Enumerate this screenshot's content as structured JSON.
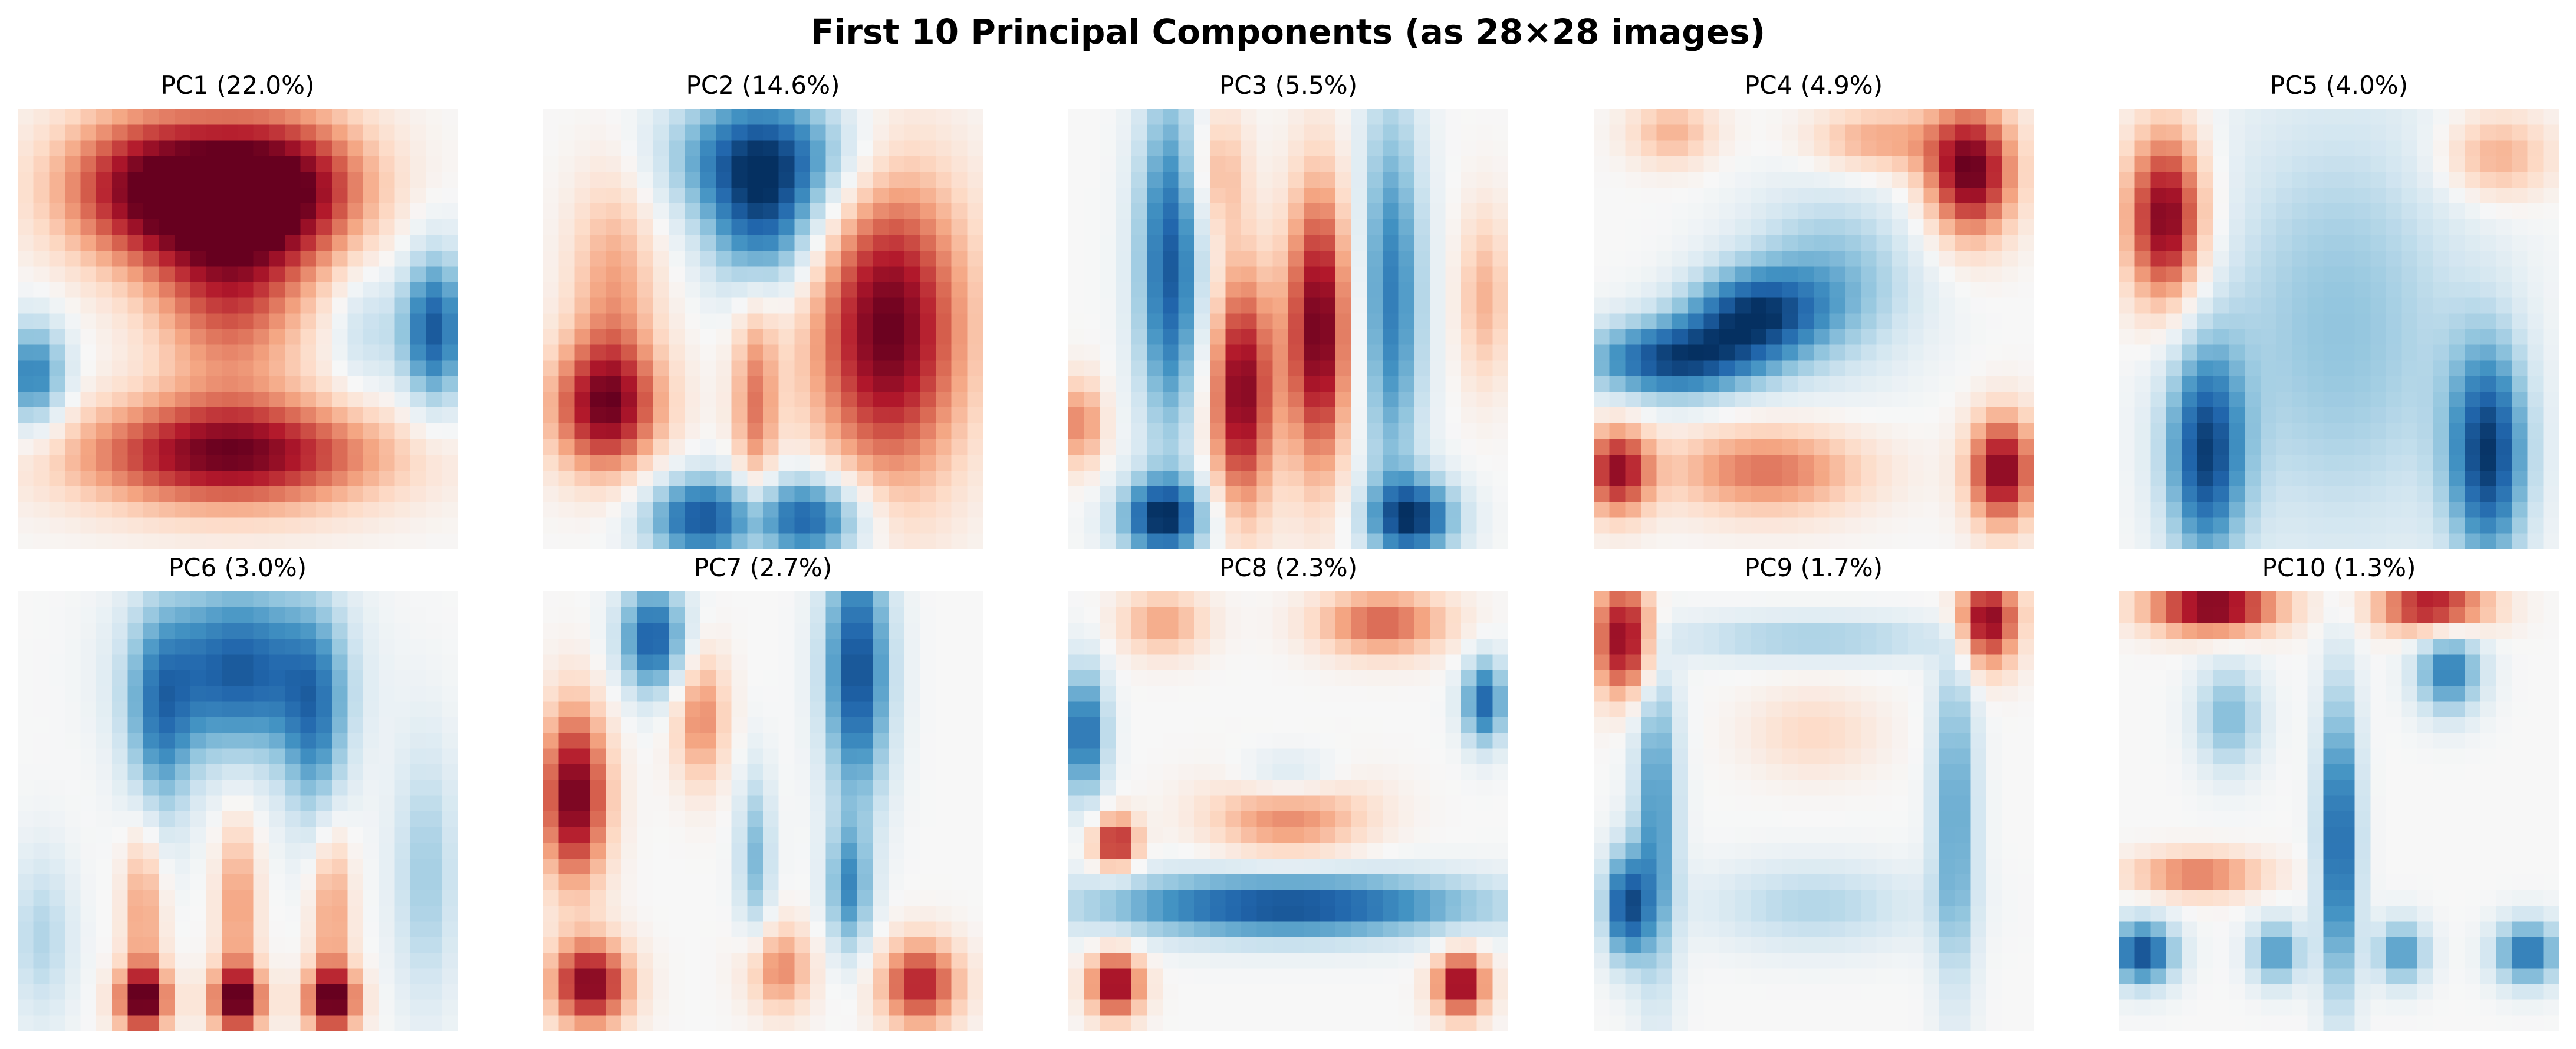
{
  "figure": {
    "title": "First 10 Principal Components (as 28×28 images)"
  },
  "colors": {
    "cmap": "RdBu_r",
    "negative": "#053061",
    "zero": "#f7f7f7",
    "positive": "#67001f"
  },
  "chart_data": [
    {
      "type": "heatmap",
      "title": "PC1 (22.0%)",
      "grid": [
        28,
        28
      ],
      "axes": "off",
      "blobs": [
        {
          "x": 9,
          "y": 5,
          "sx": 4.5,
          "sy": 3.5,
          "a": 1.0
        },
        {
          "x": 17,
          "y": 5,
          "sx": 4.0,
          "sy": 3.5,
          "a": 0.9
        },
        {
          "x": 13.5,
          "y": 12,
          "sx": 3.5,
          "sy": 4.5,
          "a": 0.6
        },
        {
          "x": 13.5,
          "y": 22,
          "sx": 7.0,
          "sy": 2.5,
          "a": 0.95
        },
        {
          "x": 1,
          "y": 17,
          "sx": 1.5,
          "sy": 2.5,
          "a": -0.7
        },
        {
          "x": 26.5,
          "y": 14,
          "sx": 1.5,
          "sy": 3.5,
          "a": -0.85
        },
        {
          "x": 22,
          "y": 14,
          "sx": 1.5,
          "sy": 3.0,
          "a": -0.25
        }
      ]
    },
    {
      "type": "heatmap",
      "title": "PC2 (14.6%)",
      "grid": [
        28,
        28
      ],
      "axes": "off",
      "blobs": [
        {
          "x": 14,
          "y": 3,
          "sx": 4.0,
          "sy": 3.0,
          "a": -0.9
        },
        {
          "x": 14,
          "y": 8,
          "sx": 2.5,
          "sy": 3.0,
          "a": -0.6
        },
        {
          "x": 22,
          "y": 14,
          "sx": 3.5,
          "sy": 7.0,
          "a": 1.0
        },
        {
          "x": 4,
          "y": 19,
          "sx": 2.5,
          "sy": 3.0,
          "a": 0.9
        },
        {
          "x": 4.5,
          "y": 11,
          "sx": 2.0,
          "sy": 5.0,
          "a": 0.4
        },
        {
          "x": 13.5,
          "y": 19,
          "sx": 1.0,
          "sy": 5.0,
          "a": 0.5
        },
        {
          "x": 10,
          "y": 26,
          "sx": 2.5,
          "sy": 2.0,
          "a": -0.85
        },
        {
          "x": 17,
          "y": 26,
          "sx": 2.5,
          "sy": 2.0,
          "a": -0.85
        }
      ]
    },
    {
      "type": "heatmap",
      "title": "PC3 (5.5%)",
      "grid": [
        28,
        28
      ],
      "axes": "off",
      "blobs": [
        {
          "x": 6.5,
          "y": 10,
          "sx": 1.5,
          "sy": 8.0,
          "a": -0.85
        },
        {
          "x": 20.5,
          "y": 12,
          "sx": 1.5,
          "sy": 9.0,
          "a": -0.7
        },
        {
          "x": 11,
          "y": 18,
          "sx": 1.5,
          "sy": 5.5,
          "a": 0.95
        },
        {
          "x": 16,
          "y": 14,
          "sx": 1.5,
          "sy": 6.5,
          "a": 1.0
        },
        {
          "x": 6,
          "y": 26,
          "sx": 2.0,
          "sy": 1.8,
          "a": -0.95
        },
        {
          "x": 22,
          "y": 26,
          "sx": 2.0,
          "sy": 1.8,
          "a": -0.9
        },
        {
          "x": 0.8,
          "y": 20,
          "sx": 1.0,
          "sy": 2.0,
          "a": 0.5
        },
        {
          "x": 26.5,
          "y": 12,
          "sx": 1.2,
          "sy": 4.0,
          "a": 0.35
        },
        {
          "x": 9.5,
          "y": 4,
          "sx": 1.3,
          "sy": 3.0,
          "a": 0.35
        }
      ]
    },
    {
      "type": "heatmap",
      "title": "PC4 (4.9%)",
      "grid": [
        28,
        28
      ],
      "axes": "off",
      "blobs": [
        {
          "x": 5,
          "y": 16,
          "sx": 4.0,
          "sy": 1.8,
          "a": -0.9
        },
        {
          "x": 10,
          "y": 13,
          "sx": 3.0,
          "sy": 2.0,
          "a": -0.75
        },
        {
          "x": 15,
          "y": 11,
          "sx": 4.0,
          "sy": 4.0,
          "a": -0.45
        },
        {
          "x": 24,
          "y": 4,
          "sx": 2.0,
          "sy": 3.0,
          "a": 1.0
        },
        {
          "x": 18,
          "y": 2,
          "sx": 3.0,
          "sy": 1.5,
          "a": 0.4
        },
        {
          "x": 5,
          "y": 1.5,
          "sx": 2.0,
          "sy": 1.5,
          "a": 0.35
        },
        {
          "x": 1.5,
          "y": 23,
          "sx": 1.5,
          "sy": 2.0,
          "a": 0.85
        },
        {
          "x": 26,
          "y": 23,
          "sx": 1.5,
          "sy": 2.5,
          "a": 0.95
        },
        {
          "x": 11,
          "y": 23,
          "sx": 4.5,
          "sy": 2.0,
          "a": 0.55
        }
      ]
    },
    {
      "type": "heatmap",
      "title": "PC5 (4.0%)",
      "grid": [
        28,
        28
      ],
      "axes": "off",
      "blobs": [
        {
          "x": 3,
          "y": 7,
          "sx": 1.8,
          "sy": 4.0,
          "a": 1.0
        },
        {
          "x": 24,
          "y": 3,
          "sx": 2.5,
          "sy": 2.0,
          "a": 0.4
        },
        {
          "x": 5.5,
          "y": 22,
          "sx": 1.8,
          "sy": 5.0,
          "a": -0.85
        },
        {
          "x": 23.5,
          "y": 22,
          "sx": 1.8,
          "sy": 5.0,
          "a": -0.9
        },
        {
          "x": 14,
          "y": 14,
          "sx": 6.0,
          "sy": 10.0,
          "a": -0.4
        }
      ]
    },
    {
      "type": "heatmap",
      "title": "PC6 (3.0%)",
      "grid": [
        28,
        28
      ],
      "axes": "off",
      "blobs": [
        {
          "x": 14,
          "y": 5,
          "sx": 4.0,
          "sy": 4.0,
          "a": -0.85
        },
        {
          "x": 9,
          "y": 9,
          "sx": 1.5,
          "sy": 5.0,
          "a": -0.5
        },
        {
          "x": 19,
          "y": 9,
          "sx": 1.5,
          "sy": 5.0,
          "a": -0.5
        },
        {
          "x": 8,
          "y": 26,
          "sx": 1.2,
          "sy": 1.5,
          "a": 1.0
        },
        {
          "x": 14,
          "y": 26,
          "sx": 1.2,
          "sy": 1.5,
          "a": 1.0
        },
        {
          "x": 20,
          "y": 26,
          "sx": 1.2,
          "sy": 1.5,
          "a": 1.0
        },
        {
          "x": 8,
          "y": 20,
          "sx": 0.9,
          "sy": 4.0,
          "a": 0.45
        },
        {
          "x": 14,
          "y": 20,
          "sx": 0.9,
          "sy": 4.0,
          "a": 0.45
        },
        {
          "x": 20,
          "y": 20,
          "sx": 0.9,
          "sy": 4.0,
          "a": 0.45
        },
        {
          "x": 1.5,
          "y": 22,
          "sx": 1.5,
          "sy": 4.0,
          "a": -0.3
        },
        {
          "x": 26,
          "y": 18,
          "sx": 1.5,
          "sy": 6.0,
          "a": -0.35
        }
      ]
    },
    {
      "type": "heatmap",
      "title": "PC7 (2.7%)",
      "grid": [
        28,
        28
      ],
      "axes": "off",
      "blobs": [
        {
          "x": 2,
          "y": 13,
          "sx": 1.5,
          "sy": 4.0,
          "a": 1.0
        },
        {
          "x": 7,
          "y": 3,
          "sx": 1.5,
          "sy": 2.5,
          "a": -0.85
        },
        {
          "x": 20,
          "y": 5,
          "sx": 1.5,
          "sy": 6.0,
          "a": -0.9
        },
        {
          "x": 3,
          "y": 25,
          "sx": 1.8,
          "sy": 2.0,
          "a": 0.95
        },
        {
          "x": 24,
          "y": 25,
          "sx": 1.8,
          "sy": 2.0,
          "a": 0.8
        },
        {
          "x": 15,
          "y": 24,
          "sx": 1.5,
          "sy": 2.0,
          "a": 0.5
        },
        {
          "x": 10,
          "y": 8,
          "sx": 1.2,
          "sy": 3.0,
          "a": 0.5
        },
        {
          "x": 13.5,
          "y": 17,
          "sx": 0.8,
          "sy": 4.0,
          "a": -0.45
        },
        {
          "x": 19.5,
          "y": 19,
          "sx": 1.0,
          "sy": 3.0,
          "a": -0.6
        }
      ]
    },
    {
      "type": "heatmap",
      "title": "PC8 (2.3%)",
      "grid": [
        28,
        28
      ],
      "axes": "off",
      "blobs": [
        {
          "x": 14,
          "y": 20,
          "sx": 9.0,
          "sy": 1.5,
          "a": -0.9
        },
        {
          "x": 14,
          "y": 12,
          "sx": 2.5,
          "sy": 1.3,
          "a": -0.4
        },
        {
          "x": 1,
          "y": 9,
          "sx": 1.0,
          "sy": 3.0,
          "a": -0.8
        },
        {
          "x": 26.5,
          "y": 7,
          "sx": 1.0,
          "sy": 2.0,
          "a": -0.8
        },
        {
          "x": 14,
          "y": 14,
          "sx": 3.5,
          "sy": 2.0,
          "a": 0.55
        },
        {
          "x": 3,
          "y": 16,
          "sx": 1.0,
          "sy": 1.2,
          "a": 0.85
        },
        {
          "x": 3,
          "y": 25,
          "sx": 1.2,
          "sy": 1.5,
          "a": 0.95
        },
        {
          "x": 25,
          "y": 25,
          "sx": 1.2,
          "sy": 1.5,
          "a": 0.95
        },
        {
          "x": 20,
          "y": 2,
          "sx": 3.0,
          "sy": 1.5,
          "a": 0.6
        },
        {
          "x": 6,
          "y": 2,
          "sx": 2.0,
          "sy": 1.5,
          "a": 0.4
        }
      ]
    },
    {
      "type": "heatmap",
      "title": "PC9 (1.7%)",
      "grid": [
        28,
        28
      ],
      "axes": "off",
      "blobs": [
        {
          "x": 2,
          "y": 3,
          "sx": 1.5,
          "sy": 2.5,
          "a": 1.0
        },
        {
          "x": 25,
          "y": 2,
          "sx": 1.5,
          "sy": 2.0,
          "a": 1.0
        },
        {
          "x": 4,
          "y": 14,
          "sx": 1.0,
          "sy": 8.0,
          "a": -0.6
        },
        {
          "x": 23,
          "y": 14,
          "sx": 1.0,
          "sy": 8.0,
          "a": -0.55
        },
        {
          "x": 14,
          "y": 3,
          "sx": 7.0,
          "sy": 1.0,
          "a": -0.35
        },
        {
          "x": 2,
          "y": 20,
          "sx": 1.0,
          "sy": 2.5,
          "a": -0.85
        },
        {
          "x": 14,
          "y": 20,
          "sx": 5.0,
          "sy": 2.0,
          "a": -0.3
        },
        {
          "x": 14,
          "y": 9,
          "sx": 3.0,
          "sy": 2.0,
          "a": 0.2
        }
      ]
    },
    {
      "type": "heatmap",
      "title": "PC10 (1.3%)",
      "grid": [
        28,
        28
      ],
      "axes": "off",
      "blobs": [
        {
          "x": 6,
          "y": 1,
          "sx": 3.0,
          "sy": 1.2,
          "a": 1.0
        },
        {
          "x": 20,
          "y": 1,
          "sx": 2.5,
          "sy": 1.2,
          "a": 0.9
        },
        {
          "x": 5,
          "y": 18,
          "sx": 3.0,
          "sy": 1.0,
          "a": 0.55
        },
        {
          "x": 14,
          "y": 16,
          "sx": 0.9,
          "sy": 7.0,
          "a": -0.85
        },
        {
          "x": 21,
          "y": 5,
          "sx": 1.5,
          "sy": 2.0,
          "a": -0.7
        },
        {
          "x": 1.5,
          "y": 23,
          "sx": 1.5,
          "sy": 1.5,
          "a": -0.9
        },
        {
          "x": 10,
          "y": 23,
          "sx": 1.2,
          "sy": 1.5,
          "a": -0.6
        },
        {
          "x": 18,
          "y": 23,
          "sx": 1.2,
          "sy": 1.5,
          "a": -0.6
        },
        {
          "x": 26,
          "y": 23,
          "sx": 1.5,
          "sy": 1.5,
          "a": -0.75
        },
        {
          "x": 7,
          "y": 8,
          "sx": 1.5,
          "sy": 2.5,
          "a": -0.45
        }
      ]
    }
  ]
}
